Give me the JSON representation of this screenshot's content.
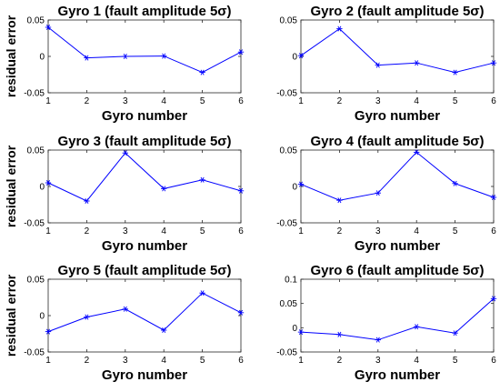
{
  "chart_data": [
    {
      "type": "line",
      "title": "Gyro 1 (fault amplitude 5σ)",
      "xlabel": "Gyro number",
      "ylabel": "residual error",
      "x": [
        1,
        2,
        3,
        4,
        5,
        6
      ],
      "series": [
        {
          "values": [
            0.04,
            -0.002,
            0.0,
            0.0005,
            -0.022,
            0.006
          ],
          "color": "#0000ff",
          "marker": "asterisk"
        }
      ],
      "xlim": [
        1,
        6
      ],
      "ylim": [
        -0.05,
        0.05
      ],
      "xticks": [
        1,
        2,
        3,
        4,
        5,
        6
      ],
      "yticks": [
        -0.05,
        0,
        0.05
      ],
      "ytick_labels": [
        "-0.05",
        "0",
        "0.05"
      ],
      "grid": false
    },
    {
      "type": "line",
      "title": "Gyro 2 (fault amplitude 5σ)",
      "xlabel": "Gyro number",
      "ylabel": "",
      "x": [
        1,
        2,
        3,
        4,
        5,
        6
      ],
      "series": [
        {
          "values": [
            0.001,
            0.038,
            -0.012,
            -0.009,
            -0.022,
            -0.009
          ],
          "color": "#0000ff",
          "marker": "asterisk"
        }
      ],
      "xlim": [
        1,
        6
      ],
      "ylim": [
        -0.05,
        0.05
      ],
      "xticks": [
        1,
        2,
        3,
        4,
        5,
        6
      ],
      "yticks": [
        -0.05,
        0,
        0.05
      ],
      "ytick_labels": [
        "-0.05",
        "0",
        "0.05"
      ],
      "grid": false
    },
    {
      "type": "line",
      "title": "Gyro 3 (fault amplitude 5σ)",
      "xlabel": "Gyro number",
      "ylabel": "residual error",
      "x": [
        1,
        2,
        3,
        4,
        5,
        6
      ],
      "series": [
        {
          "values": [
            0.005,
            -0.02,
            0.046,
            -0.003,
            0.009,
            -0.006
          ],
          "color": "#0000ff",
          "marker": "asterisk"
        }
      ],
      "xlim": [
        1,
        6
      ],
      "ylim": [
        -0.05,
        0.05
      ],
      "xticks": [
        1,
        2,
        3,
        4,
        5,
        6
      ],
      "yticks": [
        -0.05,
        0,
        0.05
      ],
      "ytick_labels": [
        "-0.05",
        "0",
        "0.05"
      ],
      "grid": false
    },
    {
      "type": "line",
      "title": "Gyro 4 (fault amplitude 5σ)",
      "xlabel": "Gyro number",
      "ylabel": "",
      "x": [
        1,
        2,
        3,
        4,
        5,
        6
      ],
      "series": [
        {
          "values": [
            0.003,
            -0.019,
            -0.009,
            0.047,
            0.004,
            -0.015
          ],
          "color": "#0000ff",
          "marker": "asterisk"
        }
      ],
      "xlim": [
        1,
        6
      ],
      "ylim": [
        -0.05,
        0.05
      ],
      "xticks": [
        1,
        2,
        3,
        4,
        5,
        6
      ],
      "yticks": [
        -0.05,
        0,
        0.05
      ],
      "ytick_labels": [
        "-0.05",
        "0",
        "0.05"
      ],
      "grid": false
    },
    {
      "type": "line",
      "title": "Gyro 5 (fault amplitude 5σ)",
      "xlabel": "Gyro number",
      "ylabel": "residual error",
      "x": [
        1,
        2,
        3,
        4,
        5,
        6
      ],
      "series": [
        {
          "values": [
            -0.022,
            -0.002,
            0.009,
            -0.02,
            0.031,
            0.004
          ],
          "color": "#0000ff",
          "marker": "asterisk"
        }
      ],
      "xlim": [
        1,
        6
      ],
      "ylim": [
        -0.05,
        0.05
      ],
      "xticks": [
        1,
        2,
        3,
        4,
        5,
        6
      ],
      "yticks": [
        -0.05,
        0,
        0.05
      ],
      "ytick_labels": [
        "-0.05",
        "0",
        "0.05"
      ],
      "grid": false
    },
    {
      "type": "line",
      "title": "Gyro 6 (fault amplitude 5σ)",
      "xlabel": "Gyro number",
      "ylabel": "",
      "x": [
        1,
        2,
        3,
        4,
        5,
        6
      ],
      "series": [
        {
          "values": [
            -0.009,
            -0.014,
            -0.025,
            0.002,
            -0.011,
            0.06
          ],
          "color": "#0000ff",
          "marker": "asterisk"
        }
      ],
      "xlim": [
        1,
        6
      ],
      "ylim": [
        -0.05,
        0.1
      ],
      "xticks": [
        1,
        2,
        3,
        4,
        5,
        6
      ],
      "yticks": [
        -0.05,
        0,
        0.05,
        0.1
      ],
      "ytick_labels": [
        "-0.05",
        "0",
        "0.05",
        "0.1"
      ],
      "grid": false
    }
  ]
}
